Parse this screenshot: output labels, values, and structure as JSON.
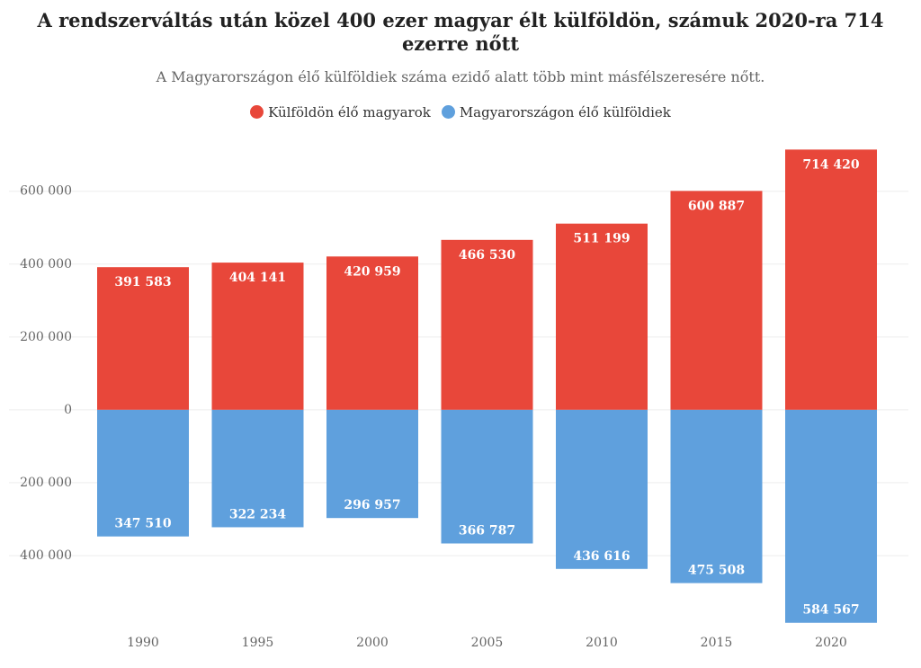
{
  "chart_data": {
    "type": "bar",
    "title": "A rendszerváltás után közel 400 ezer magyar élt külföldön, számuk 2020-ra 714 ezerre nőtt",
    "subtitle": "A Magyarországon élő külföldiek száma ezidő alatt több mint másfélszeresére nőtt.",
    "categories": [
      "1990",
      "1995",
      "2000",
      "2005",
      "2010",
      "2015",
      "2020"
    ],
    "series": [
      {
        "name": "Külföldön élő magyarok",
        "color": "#e8473a",
        "values": [
          391583,
          404141,
          420959,
          466530,
          511199,
          600887,
          714420
        ],
        "value_labels": [
          "391 583",
          "404 141",
          "420 959",
          "466 530",
          "511 199",
          "600 887",
          "714 420"
        ]
      },
      {
        "name": "Magyarországon élő külföldiek",
        "color": "#5fa0dd",
        "values": [
          -347510,
          -322234,
          -296957,
          -366787,
          -436616,
          -475508,
          -584567
        ],
        "value_labels": [
          "347 510",
          "322 234",
          "296 957",
          "366 787",
          "436 616",
          "475 508",
          "584 567"
        ]
      }
    ],
    "ylim": [
      -600000,
      740000
    ],
    "yticks": [
      {
        "value": 600000,
        "label": "600 000"
      },
      {
        "value": 400000,
        "label": "400 000"
      },
      {
        "value": 200000,
        "label": "200 000"
      },
      0,
      {
        "value": -200000,
        "label": "200 000"
      },
      {
        "value": -400000,
        "label": "400 000"
      }
    ],
    "grid": true,
    "legend": "top"
  }
}
